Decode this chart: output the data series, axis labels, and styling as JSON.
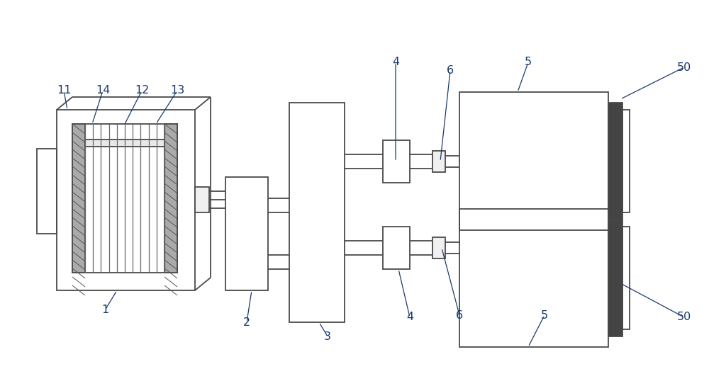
{
  "bg_color": "#ffffff",
  "line_color": "#4a4a4a",
  "label_color": "#1a3a6b",
  "fig_width": 10.0,
  "fig_height": 5.38,
  "dpi": 100
}
